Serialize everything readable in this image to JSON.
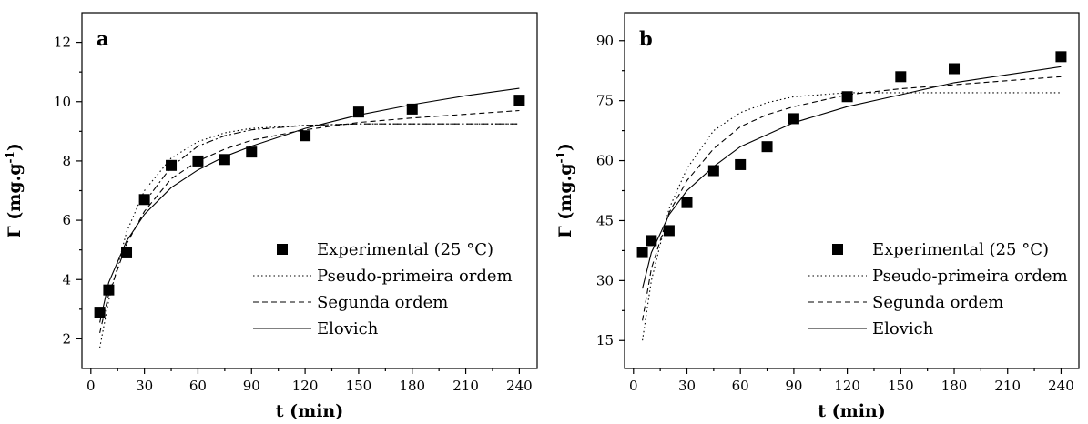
{
  "chart_data": [
    {
      "type": "scatter",
      "panel_label": "a",
      "xlabel": "t (min)",
      "ylabel": "Γ (mg.g",
      "ylabel_sup": "-1",
      "ylabel_close": ")",
      "xlim": [
        -5,
        250
      ],
      "ylim": [
        1,
        13
      ],
      "xticks": [
        0,
        30,
        60,
        90,
        120,
        150,
        180,
        210,
        240
      ],
      "yticks": [
        2,
        4,
        6,
        8,
        10,
        12
      ],
      "xtick_labels": [
        "0",
        "30",
        "60",
        "90",
        "120",
        "150",
        "180",
        "210",
        "240"
      ],
      "ytick_labels": [
        "2",
        "4",
        "6",
        "8",
        "10",
        "12"
      ],
      "legend_position": "lower-right",
      "series": [
        {
          "name": "Experimental (25 °C)",
          "kind": "markers",
          "x": [
            5,
            10,
            20,
            30,
            45,
            60,
            75,
            90,
            120,
            150,
            180,
            240
          ],
          "y": [
            2.9,
            3.65,
            4.9,
            6.7,
            7.85,
            8.0,
            8.05,
            8.3,
            8.85,
            9.65,
            9.75,
            10.05
          ]
        },
        {
          "name": "Pseudo-primeira ordem",
          "kind": "line",
          "dash": "1.5,3",
          "x": [
            5,
            10,
            20,
            30,
            45,
            60,
            75,
            90,
            120,
            150,
            180,
            240
          ],
          "y": [
            1.7,
            3.3,
            5.6,
            7.0,
            8.1,
            8.65,
            8.95,
            9.1,
            9.2,
            9.25,
            9.25,
            9.25
          ]
        },
        {
          "name": "Segunda ordem",
          "kind": "line",
          "dash": "6,4",
          "x": [
            5,
            10,
            20,
            30,
            45,
            60,
            75,
            90,
            120,
            150,
            180,
            240
          ],
          "y": [
            2.2,
            3.5,
            5.2,
            6.3,
            7.4,
            8.0,
            8.4,
            8.7,
            9.05,
            9.3,
            9.45,
            9.7
          ]
        },
        {
          "name": "",
          "kind": "line",
          "dash": "8,3,2,3",
          "x": [
            30,
            45,
            60,
            75,
            90,
            120,
            150,
            180,
            240
          ],
          "y": [
            6.6,
            7.8,
            8.5,
            8.85,
            9.05,
            9.2,
            9.25,
            9.25,
            9.25
          ]
        },
        {
          "name": "Elovich",
          "kind": "line",
          "dash": "",
          "x": [
            5,
            10,
            20,
            30,
            45,
            60,
            75,
            90,
            120,
            150,
            180,
            210,
            240
          ],
          "y": [
            2.55,
            3.9,
            5.3,
            6.2,
            7.1,
            7.7,
            8.15,
            8.5,
            9.1,
            9.55,
            9.9,
            10.2,
            10.45
          ]
        }
      ]
    },
    {
      "type": "scatter",
      "panel_label": "b",
      "xlabel": "t (min)",
      "ylabel": "Γ (mg.g",
      "ylabel_sup": "-1",
      "ylabel_close": ")",
      "xlim": [
        -5,
        250
      ],
      "ylim": [
        8,
        97
      ],
      "xticks": [
        0,
        30,
        60,
        90,
        120,
        150,
        180,
        210,
        240
      ],
      "yticks": [
        15,
        30,
        45,
        60,
        75,
        90
      ],
      "xtick_labels": [
        "0",
        "30",
        "60",
        "90",
        "120",
        "150",
        "180",
        "210",
        "240"
      ],
      "ytick_labels": [
        "15",
        "30",
        "45",
        "60",
        "75",
        "90"
      ],
      "legend_position": "lower-right",
      "series": [
        {
          "name": "Experimental (25 °C)",
          "kind": "markers",
          "x": [
            5,
            10,
            20,
            30,
            45,
            60,
            75,
            90,
            120,
            150,
            180,
            240
          ],
          "y": [
            37,
            40,
            42.5,
            49.5,
            57.5,
            59,
            63.5,
            70.5,
            76,
            81,
            83,
            86
          ]
        },
        {
          "name": "Pseudo-primeira ordem",
          "kind": "line",
          "dash": "1.5,3",
          "x": [
            5,
            10,
            20,
            30,
            45,
            60,
            75,
            90,
            120,
            150,
            180,
            240
          ],
          "y": [
            15,
            30,
            48,
            58,
            67.5,
            72,
            74.5,
            76,
            77,
            77,
            77,
            77
          ]
        },
        {
          "name": "Segunda ordem",
          "kind": "line",
          "dash": "6,4",
          "x": [
            5,
            10,
            20,
            30,
            45,
            60,
            75,
            90,
            120,
            150,
            180,
            240
          ],
          "y": [
            20,
            33,
            47,
            55,
            63,
            68.5,
            71.5,
            73.5,
            76.5,
            78,
            79,
            81
          ]
        },
        {
          "name": "Elovich",
          "kind": "line",
          "dash": "",
          "x": [
            5,
            10,
            20,
            30,
            45,
            60,
            75,
            90,
            120,
            150,
            180,
            210,
            240
          ],
          "y": [
            28,
            37,
            46.5,
            52.5,
            58.5,
            63.5,
            66.5,
            69.5,
            73.5,
            76.5,
            79.5,
            81.5,
            83.5
          ]
        }
      ]
    }
  ]
}
